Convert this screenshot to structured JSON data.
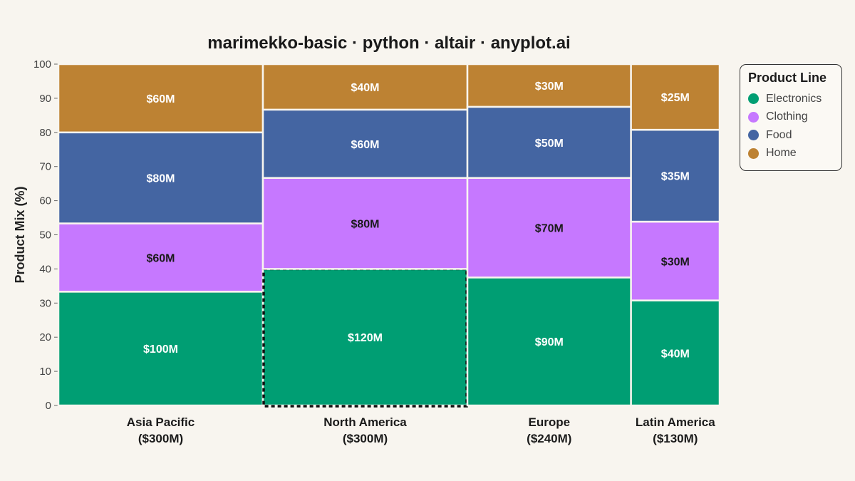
{
  "chart_data": {
    "type": "marimekko",
    "title": "marimekko-basic · python · altair · anyplot.ai",
    "ylabel": "Product Mix (%)",
    "ylim": [
      0,
      100
    ],
    "yticks": [
      0,
      10,
      20,
      30,
      40,
      50,
      60,
      70,
      80,
      90,
      100
    ],
    "legend": {
      "title": "Product Line",
      "placement": "top-right"
    },
    "series": [
      {
        "name": "Electronics",
        "color": "#009e73"
      },
      {
        "name": "Clothing",
        "color": "#c678ff"
      },
      {
        "name": "Food",
        "color": "#4465a2"
      },
      {
        "name": "Home",
        "color": "#bd8233"
      }
    ],
    "categories": [
      {
        "name": "Asia Pacific",
        "total_label": "($300M)",
        "total": 300,
        "values": [
          100,
          60,
          80,
          60
        ],
        "labels": [
          "$100M",
          "$60M",
          "$80M",
          "$60M"
        ]
      },
      {
        "name": "North America",
        "total_label": "($300M)",
        "total": 300,
        "values": [
          120,
          80,
          60,
          40
        ],
        "labels": [
          "$120M",
          "$80M",
          "$60M",
          "$40M"
        ],
        "highlight": "Electronics"
      },
      {
        "name": "Europe",
        "total_label": "($240M)",
        "total": 240,
        "values": [
          90,
          70,
          50,
          30
        ],
        "labels": [
          "$90M",
          "$70M",
          "$50M",
          "$30M"
        ]
      },
      {
        "name": "Latin America",
        "total_label": "($130M)",
        "total": 130,
        "values": [
          40,
          30,
          35,
          25
        ],
        "labels": [
          "$40M",
          "$30M",
          "$35M",
          "$25M"
        ]
      }
    ]
  }
}
